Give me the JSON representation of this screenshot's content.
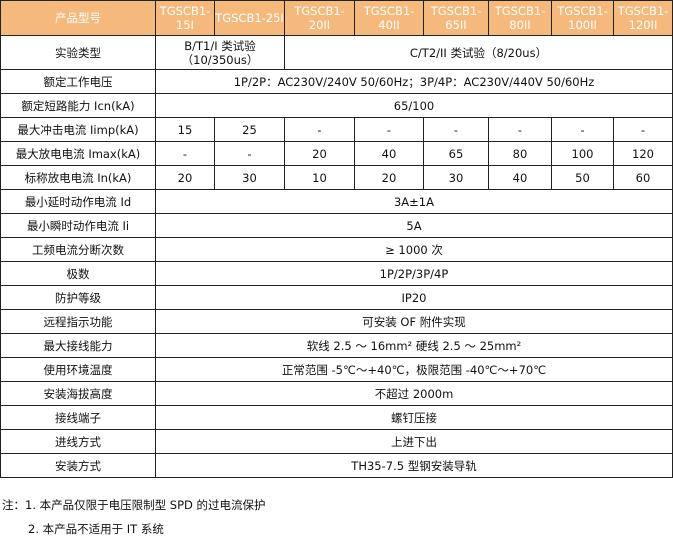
{
  "header": {
    "label": "产品型号",
    "models": [
      "TGSCB1-15I",
      "TGSCB1-25I",
      "TGSCB1-20II",
      "TGSCB1-40II",
      "TGSCB1-65II",
      "TGSCB1-80II",
      "TGSCB1-100II",
      "TGSCB1-120II"
    ]
  },
  "test_type": {
    "label": "实验类型",
    "class1_line1": "B/T1/I 类试验",
    "class1_line2": "（10/350us）",
    "class2": "C/T2/II 类试验（8/20us）"
  },
  "rated_voltage": {
    "label": "额定工作电压",
    "value": "1P/2P：AC230V/240V 50/60Hz；3P/4P：AC230V/440V 50/60Hz"
  },
  "short_circuit": {
    "label": "额定短路能力 Icn(kA)",
    "value": "65/100"
  },
  "iimp": {
    "label": "最大冲击电流 Iimp(kA)",
    "values": [
      "15",
      "25",
      "-",
      "-",
      "-",
      "-",
      "-",
      "-"
    ]
  },
  "imax": {
    "label": "最大放电电流 Imax(kA)",
    "values": [
      "-",
      "-",
      "20",
      "40",
      "65",
      "80",
      "100",
      "120"
    ]
  },
  "in": {
    "label": "标称放电电流 In(kA)",
    "values": [
      "20",
      "30",
      "10",
      "20",
      "30",
      "40",
      "50",
      "60"
    ]
  },
  "spans": [
    {
      "label": "最小延时动作电流 Id",
      "value": "3A±1A"
    },
    {
      "label": "最小瞬时动作电流 Ii",
      "value": "5A"
    },
    {
      "label": "工频电流分断次数",
      "value": "≥ 1000 次"
    },
    {
      "label": "极数",
      "value": "1P/2P/3P/4P"
    },
    {
      "label": "防护等级",
      "value": "IP20"
    },
    {
      "label": "远程指示功能",
      "value": "可安装 OF 附件实现"
    },
    {
      "label": "最大接线能力",
      "value": "软线 2.5 ～ 16mm² 硬线 2.5 ～ 25mm²"
    },
    {
      "label": "使用环境温度",
      "value": "正常范围 -5℃～+40℃，极限范围 -40℃～+70℃"
    },
    {
      "label": "安装海拔高度",
      "value": "不超过 2000m"
    },
    {
      "label": "接线端子",
      "value": "螺钉压接"
    },
    {
      "label": "进线方式",
      "value": "上进下出"
    },
    {
      "label": "安装方式",
      "value": "TH35-7.5 型钢安装导轨"
    }
  ],
  "notes": [
    "注：1. 本产品仅限于电压限制型 SPD 的过电流保护",
    "2. 本产品不适用于 IT 系统"
  ],
  "colors": {
    "header_bg": "#f6b97c",
    "header_text": "#ffffff"
  }
}
